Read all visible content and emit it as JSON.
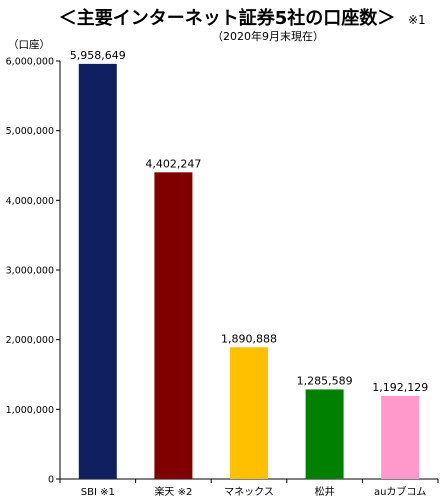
{
  "chart_data": {
    "type": "bar",
    "title": "＜主要インターネット証券5社の口座数＞",
    "title_note": "※1",
    "subtitle": "（2020年9月末現在）",
    "ylabel": "（口座）",
    "ylim": [
      0,
      6000000
    ],
    "yticks": [
      "0",
      "1,000,000",
      "2,000,000",
      "3,000,000",
      "4,000,000",
      "5,000,000",
      "6,000,000"
    ],
    "ytick_values": [
      0,
      1000000,
      2000000,
      3000000,
      4000000,
      5000000,
      6000000
    ],
    "grid": false,
    "categories": [
      "SBI ※1",
      "楽天 ※2",
      "マネックス",
      "松井",
      "auカブコム"
    ],
    "values": [
      5958649,
      4402247,
      1890888,
      1285589,
      1192129
    ],
    "data_labels": [
      "5,958,649",
      "4,402,247",
      "1,890,888",
      "1,285,589",
      "1,192,129"
    ],
    "colors": [
      "#0e2060",
      "#800000",
      "#ffc000",
      "#008000",
      "#ff99cc"
    ]
  }
}
